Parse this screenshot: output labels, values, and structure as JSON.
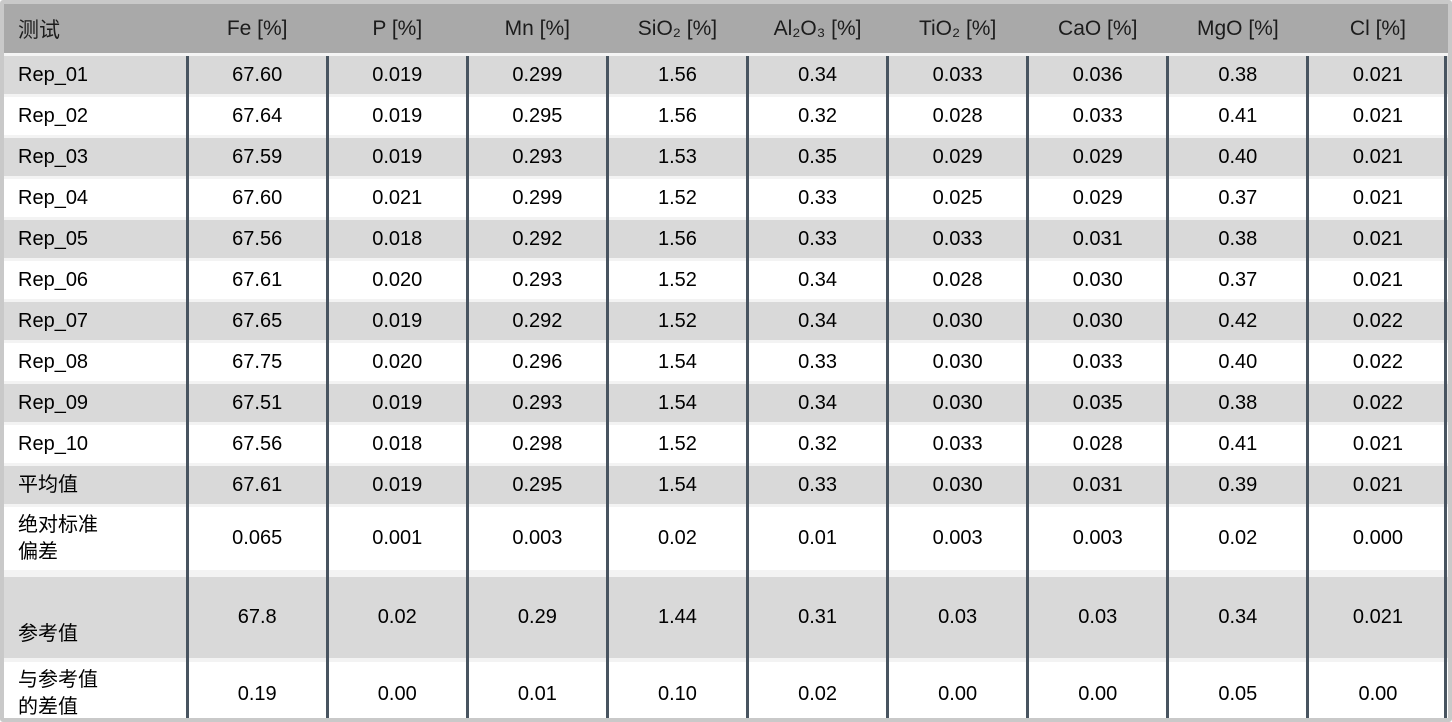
{
  "colors": {
    "header_bg": "#a9a9a9",
    "shaded_row_bg": "#d9d9d9",
    "column_divider": "#485460",
    "frame_border": "#c9c9c9"
  },
  "table": {
    "header": {
      "test_label": "测试",
      "columns": [
        "Fe [%]",
        "P [%]",
        "Mn [%]",
        "SiO₂ [%]",
        "Al₂O₃ [%]",
        "TiO₂ [%]",
        "CaO [%]",
        "MgO [%]",
        "Cl [%]"
      ]
    },
    "rows": [
      {
        "label": "Rep_01",
        "values": [
          "67.60",
          "0.019",
          "0.299",
          "1.56",
          "0.34",
          "0.033",
          "0.036",
          "0.38",
          "0.021"
        ]
      },
      {
        "label": "Rep_02",
        "values": [
          "67.64",
          "0.019",
          "0.295",
          "1.56",
          "0.32",
          "0.028",
          "0.033",
          "0.41",
          "0.021"
        ]
      },
      {
        "label": "Rep_03",
        "values": [
          "67.59",
          "0.019",
          "0.293",
          "1.53",
          "0.35",
          "0.029",
          "0.029",
          "0.40",
          "0.021"
        ]
      },
      {
        "label": "Rep_04",
        "values": [
          "67.60",
          "0.021",
          "0.299",
          "1.52",
          "0.33",
          "0.025",
          "0.029",
          "0.37",
          "0.021"
        ]
      },
      {
        "label": "Rep_05",
        "values": [
          "67.56",
          "0.018",
          "0.292",
          "1.56",
          "0.33",
          "0.033",
          "0.031",
          "0.38",
          "0.021"
        ]
      },
      {
        "label": "Rep_06",
        "values": [
          "67.61",
          "0.020",
          "0.293",
          "1.52",
          "0.34",
          "0.028",
          "0.030",
          "0.37",
          "0.021"
        ]
      },
      {
        "label": "Rep_07",
        "values": [
          "67.65",
          "0.019",
          "0.292",
          "1.52",
          "0.34",
          "0.030",
          "0.030",
          "0.42",
          "0.022"
        ]
      },
      {
        "label": "Rep_08",
        "values": [
          "67.75",
          "0.020",
          "0.296",
          "1.54",
          "0.33",
          "0.030",
          "0.033",
          "0.40",
          "0.022"
        ]
      },
      {
        "label": "Rep_09",
        "values": [
          "67.51",
          "0.019",
          "0.293",
          "1.54",
          "0.34",
          "0.030",
          "0.035",
          "0.38",
          "0.022"
        ]
      },
      {
        "label": "Rep_10",
        "values": [
          "67.56",
          "0.018",
          "0.298",
          "1.52",
          "0.32",
          "0.033",
          "0.028",
          "0.41",
          "0.021"
        ]
      },
      {
        "label": "平均值",
        "values": [
          "67.61",
          "0.019",
          "0.295",
          "1.54",
          "0.33",
          "0.030",
          "0.031",
          "0.39",
          "0.021"
        ]
      },
      {
        "label": "绝对标准\n偏差",
        "values": [
          "0.065",
          "0.001",
          "0.003",
          "0.02",
          "0.01",
          "0.003",
          "0.003",
          "0.02",
          "0.000"
        ]
      },
      {
        "label": "参考值",
        "values": [
          "67.8",
          "0.02",
          "0.29",
          "1.44",
          "0.31",
          "0.03",
          "0.03",
          "0.34",
          "0.021"
        ]
      },
      {
        "label": "与参考值\n的差值",
        "values": [
          "0.19",
          "0.00",
          "0.01",
          "0.10",
          "0.02",
          "0.00",
          "0.00",
          "0.05",
          "0.00"
        ]
      }
    ]
  }
}
